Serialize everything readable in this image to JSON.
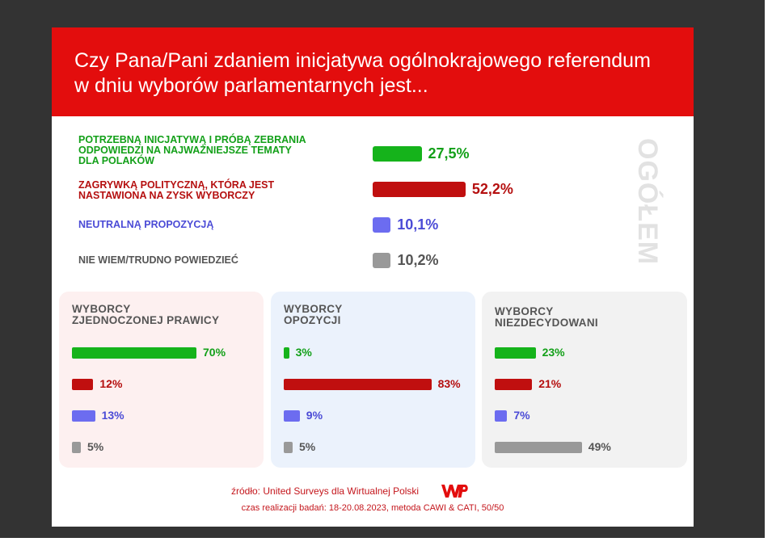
{
  "title_lines": [
    "Czy Pana/Pani zdaniem inicjatywa ogólnokrajowego referendum",
    "w dniu wyborów parlamentarnych jest..."
  ],
  "overall_label": "OGÓŁEM",
  "chart_data": [
    {
      "type": "bar",
      "title": "OGÓŁEM",
      "categories": [
        "POTRZEBNĄ INICJATYWĄ I PRÓBĄ ZEBRANIA ODPOWIEDZI NA NAJWAŻNIEJSZE TEMATY DLA POLAKÓW",
        "ZAGRYWKĄ POLITYCZNĄ, KTÓRA JEST NASTAWIONA NA ZYSK WYBORCZY",
        "NEUTRALNĄ PROPOZYCJĄ",
        "NIE WIEM/TRUDNO POWIEDZIEĆ"
      ],
      "category_lines": [
        [
          "POTRZEBNĄ INICJATYWĄ I PRÓBĄ ZEBRANIA",
          "ODPOWIEDZI NA NAJWAŻNIEJSZE TEMATY",
          "DLA POLAKÓW"
        ],
        [
          "ZAGRYWKĄ POLITYCZNĄ, KTÓRA JEST",
          "NASTAWIONA NA ZYSK WYBORCZY"
        ],
        [
          "NEUTRALNĄ PROPOZYCJĄ"
        ],
        [
          "NIE WIEM/TRUDNO POWIEDZIEĆ"
        ]
      ],
      "values": [
        27.5,
        52.2,
        10.1,
        10.2
      ],
      "value_labels": [
        "27,5%",
        "52,2%",
        "10,1%",
        "10,2%"
      ],
      "colors": [
        "#15b31b",
        "#c00f0f",
        "#6c6cf0",
        "#999999"
      ],
      "orientation": "horizontal"
    },
    {
      "type": "bar",
      "title_lines": [
        "WYBORCY",
        "ZJEDNOCZONEJ PRAWICY"
      ],
      "values": [
        70,
        12,
        13,
        5
      ],
      "value_labels": [
        "70%",
        "12%",
        "13%",
        "5%"
      ],
      "colors": [
        "#15b31b",
        "#c00f0f",
        "#6c6cf0",
        "#999999"
      ],
      "background": "#fdf0f0"
    },
    {
      "type": "bar",
      "title_lines": [
        "WYBORCY",
        "OPOZYCJI"
      ],
      "values": [
        3,
        83,
        9,
        5
      ],
      "value_labels": [
        "3%",
        "83%",
        "9%",
        "5%"
      ],
      "colors": [
        "#15b31b",
        "#c00f0f",
        "#6c6cf0",
        "#999999"
      ],
      "background": "#ebf2fc"
    },
    {
      "type": "bar",
      "title_lines": [
        "WYBORCY",
        "NIEZDECYDOWANI"
      ],
      "values": [
        23,
        21,
        7,
        49
      ],
      "value_labels": [
        "23%",
        "21%",
        "7%",
        "49%"
      ],
      "colors": [
        "#15b31b",
        "#c00f0f",
        "#6c6cf0",
        "#999999"
      ],
      "background": "#f2f2f2"
    }
  ],
  "label_colors": [
    "#13a019",
    "#b50f0f",
    "#4b4bd6",
    "#555555"
  ],
  "footer": {
    "source": "źródło: United Surveys dla Wirtualnej Polski",
    "meta": "czas realizacji badań: 18-20.08.2023, metoda CAWI & CATI, 50/50",
    "logo_icon": "wp-logo-icon"
  },
  "colors": {
    "header": "#e30d0d",
    "footer_text": "#c4161c"
  }
}
